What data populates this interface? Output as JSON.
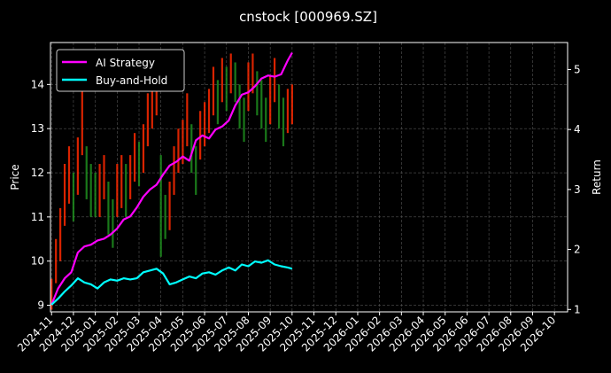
{
  "chart_data": {
    "type": "line",
    "title": "cnstock [000969.SZ]",
    "xlabel": "",
    "ylabel_left": "Price",
    "ylabel_right": "Return",
    "background": "#000000",
    "grid": true,
    "legend_position": "top-left",
    "x_tick_labels": [
      "2024-11",
      "2024-12",
      "2025-01",
      "2025-02",
      "2025-03",
      "2025-04",
      "2025-05",
      "2025-06",
      "2025-07",
      "2025-08",
      "2025-09",
      "2025-10",
      "2025-11",
      "2025-12",
      "2026-01",
      "2026-02",
      "2026-03",
      "2026-04",
      "2026-05",
      "2026-06",
      "2026-07",
      "2026-08",
      "2026-09",
      "2026-10"
    ],
    "xlim_months": [
      -0.05,
      23.6
    ],
    "ylim_left": [
      8.85,
      14.95
    ],
    "yticks_left": [
      "9",
      "10",
      "11",
      "12",
      "13",
      "14"
    ],
    "ylim_right": [
      0.96,
      5.45
    ],
    "yticks_right": [
      "1",
      "2",
      "3",
      "4",
      "5"
    ],
    "series": [
      {
        "name": "AI Strategy",
        "axis": "right",
        "color": "#ff00ff",
        "x": [
          0.0,
          0.3,
          0.6,
          0.9,
          1.2,
          1.5,
          1.8,
          2.1,
          2.4,
          2.7,
          3.0,
          3.3,
          3.6,
          3.9,
          4.2,
          4.5,
          4.8,
          5.1,
          5.4,
          5.7,
          6.0,
          6.3,
          6.6,
          6.9,
          7.2,
          7.5,
          7.8,
          8.1,
          8.4,
          8.7,
          9.0,
          9.3,
          9.6,
          9.9,
          10.2,
          10.5,
          10.8,
          11.0
        ],
        "values": [
          1.08,
          1.35,
          1.52,
          1.62,
          1.95,
          2.05,
          2.08,
          2.15,
          2.18,
          2.25,
          2.35,
          2.5,
          2.55,
          2.7,
          2.88,
          3.0,
          3.08,
          3.25,
          3.4,
          3.46,
          3.55,
          3.48,
          3.82,
          3.9,
          3.85,
          4.0,
          4.05,
          4.15,
          4.4,
          4.58,
          4.62,
          4.72,
          4.85,
          4.9,
          4.88,
          4.92,
          5.15,
          5.28
        ]
      },
      {
        "name": "Buy-and-Hold",
        "axis": "right",
        "color": "#00ffff",
        "x": [
          0.0,
          0.3,
          0.6,
          0.9,
          1.2,
          1.5,
          1.8,
          2.1,
          2.4,
          2.7,
          3.0,
          3.3,
          3.6,
          3.9,
          4.2,
          4.5,
          4.8,
          5.1,
          5.4,
          5.7,
          6.0,
          6.3,
          6.6,
          6.9,
          7.2,
          7.5,
          7.8,
          8.1,
          8.4,
          8.7,
          9.0,
          9.3,
          9.6,
          9.9,
          10.2,
          10.5,
          10.8,
          11.0
        ],
        "values": [
          1.08,
          1.18,
          1.3,
          1.4,
          1.52,
          1.45,
          1.42,
          1.35,
          1.45,
          1.5,
          1.48,
          1.52,
          1.5,
          1.52,
          1.62,
          1.65,
          1.68,
          1.6,
          1.42,
          1.45,
          1.5,
          1.55,
          1.52,
          1.6,
          1.62,
          1.58,
          1.65,
          1.7,
          1.65,
          1.75,
          1.72,
          1.8,
          1.78,
          1.82,
          1.75,
          1.72,
          1.7,
          1.68
        ]
      }
    ],
    "price_series": {
      "axis": "left",
      "up_color": "#ff2a00",
      "down_color": "#1f8f1f",
      "x": [
        0.0,
        0.2,
        0.4,
        0.6,
        0.8,
        1.0,
        1.2,
        1.4,
        1.6,
        1.8,
        2.0,
        2.2,
        2.4,
        2.6,
        2.8,
        3.0,
        3.2,
        3.4,
        3.6,
        3.8,
        4.0,
        4.2,
        4.4,
        4.6,
        4.8,
        5.0,
        5.2,
        5.4,
        5.6,
        5.8,
        6.0,
        6.2,
        6.4,
        6.6,
        6.8,
        7.0,
        7.2,
        7.4,
        7.6,
        7.8,
        8.0,
        8.2,
        8.4,
        8.6,
        8.8,
        9.0,
        9.2,
        9.4,
        9.6,
        9.8,
        10.0,
        10.2,
        10.4,
        10.6,
        10.8,
        11.0
      ],
      "close": [
        9.2,
        10.2,
        10.5,
        11.6,
        12.0,
        11.5,
        12.2,
        13.4,
        12.1,
        11.7,
        11.5,
        11.6,
        12.0,
        11.2,
        10.8,
        11.8,
        11.9,
        11.6,
        12.0,
        12.4,
        12.2,
        12.6,
        13.2,
        13.6,
        14.0,
        11.7,
        10.9,
        11.2,
        12.1,
        12.5,
        12.7,
        13.2,
        12.6,
        12.0,
        12.9,
        13.1,
        13.4,
        13.9,
        13.6,
        14.2,
        13.9,
        14.4,
        14.1,
        13.6,
        13.2,
        14.0,
        14.4,
        13.8,
        13.6,
        13.2,
        13.7,
        14.2,
        13.5,
        13.2,
        13.4,
        13.6
      ],
      "high": [
        9.6,
        10.5,
        11.2,
        12.2,
        12.6,
        12.0,
        12.8,
        14.0,
        12.6,
        12.2,
        12.0,
        12.2,
        12.4,
        11.8,
        11.4,
        12.2,
        12.4,
        12.2,
        12.4,
        12.9,
        12.7,
        13.1,
        13.8,
        14.2,
        14.5,
        12.4,
        11.5,
        11.8,
        12.6,
        13.0,
        13.2,
        13.8,
        13.1,
        12.6,
        13.4,
        13.6,
        13.9,
        14.4,
        14.1,
        14.6,
        14.4,
        14.7,
        14.5,
        14.0,
        13.7,
        14.5,
        14.7,
        14.3,
        14.1,
        13.7,
        14.2,
        14.6,
        14.0,
        13.7,
        13.9,
        14.0
      ],
      "low": [
        8.9,
        9.5,
        10.0,
        10.8,
        11.3,
        10.9,
        11.5,
        12.4,
        11.4,
        11.0,
        11.0,
        11.0,
        11.4,
        10.6,
        10.3,
        11.0,
        11.2,
        11.0,
        11.4,
        11.8,
        11.7,
        12.0,
        12.6,
        13.0,
        13.3,
        10.1,
        10.5,
        10.7,
        11.5,
        12.0,
        12.2,
        12.6,
        12.0,
        11.5,
        12.3,
        12.6,
        12.9,
        13.3,
        13.1,
        13.6,
        13.4,
        13.8,
        13.6,
        13.0,
        12.7,
        13.4,
        13.8,
        13.3,
        13.0,
        12.7,
        13.1,
        13.6,
        13.0,
        12.6,
        12.9,
        13.1
      ]
    }
  }
}
